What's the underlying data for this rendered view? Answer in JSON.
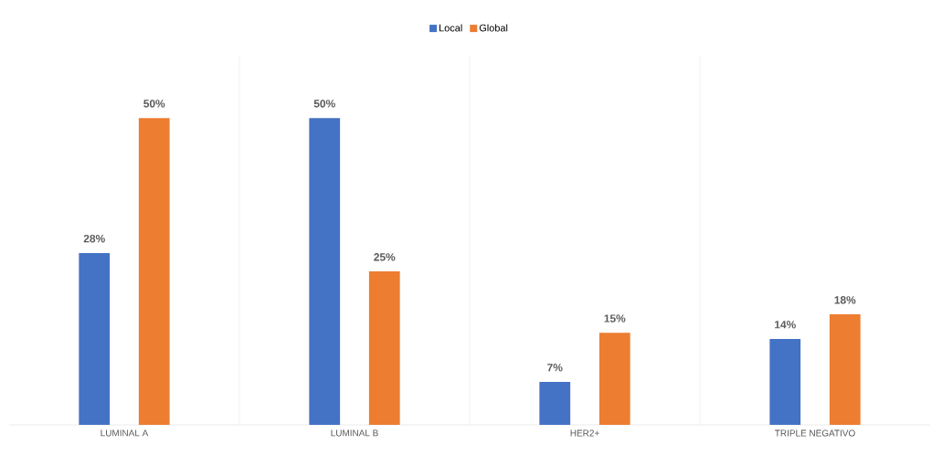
{
  "chart_data": {
    "type": "bar",
    "categories": [
      "LUMINAL A",
      "LUMINAL B",
      "HER2+",
      "TRIPLE NEGATIVO"
    ],
    "series": [
      {
        "name": "Local",
        "color": "#4472c4",
        "values": [
          28,
          50,
          7,
          14
        ],
        "value_labels": [
          "28%",
          "50%",
          "7%",
          "14%"
        ]
      },
      {
        "name": "Global",
        "color": "#ed7d31",
        "values": [
          50,
          25,
          15,
          18
        ],
        "value_labels": [
          "50%",
          "25%",
          "15%",
          "18%"
        ]
      }
    ],
    "grid": "x",
    "legend": "top"
  }
}
